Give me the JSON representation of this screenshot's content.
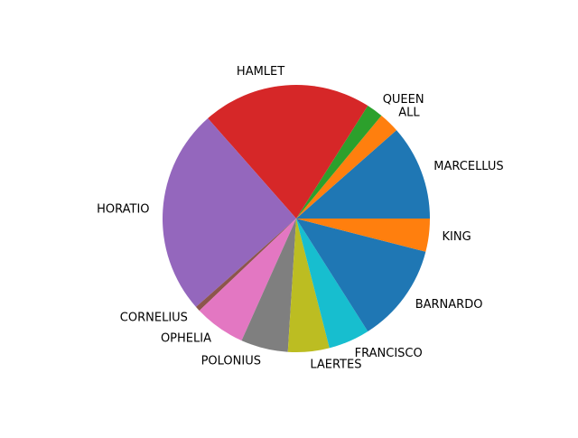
{
  "chart_data": {
    "type": "pie",
    "title": "",
    "start_angle_deg": 0,
    "direction": "counterclockwise",
    "slices": [
      {
        "label": "MARCELLUS",
        "value": 11.5,
        "color": "#1f77b4"
      },
      {
        "label": "ALL",
        "value": 2.5,
        "color": "#ff7f0e"
      },
      {
        "label": "QUEEN",
        "value": 2.0,
        "color": "#2ca02c"
      },
      {
        "label": "HAMLET",
        "value": 20.5,
        "color": "#d62728"
      },
      {
        "label": "HORATIO",
        "value": 25.0,
        "color": "#9467bd"
      },
      {
        "label": "CORNELIUS",
        "value": 0.6,
        "color": "#8c564b"
      },
      {
        "label": "OPHELIA",
        "value": 6.2,
        "color": "#e377c2"
      },
      {
        "label": "POLONIUS",
        "value": 5.7,
        "color": "#7f7f7f"
      },
      {
        "label": "LAERTES",
        "value": 5.0,
        "color": "#bcbd22"
      },
      {
        "label": "FRANCISCO",
        "value": 5.0,
        "color": "#17becf"
      },
      {
        "label": "BARNARDO",
        "value": 12.0,
        "color": "#1f77b4"
      },
      {
        "label": "KING",
        "value": 4.0,
        "color": "#ff7f0e"
      }
    ]
  }
}
